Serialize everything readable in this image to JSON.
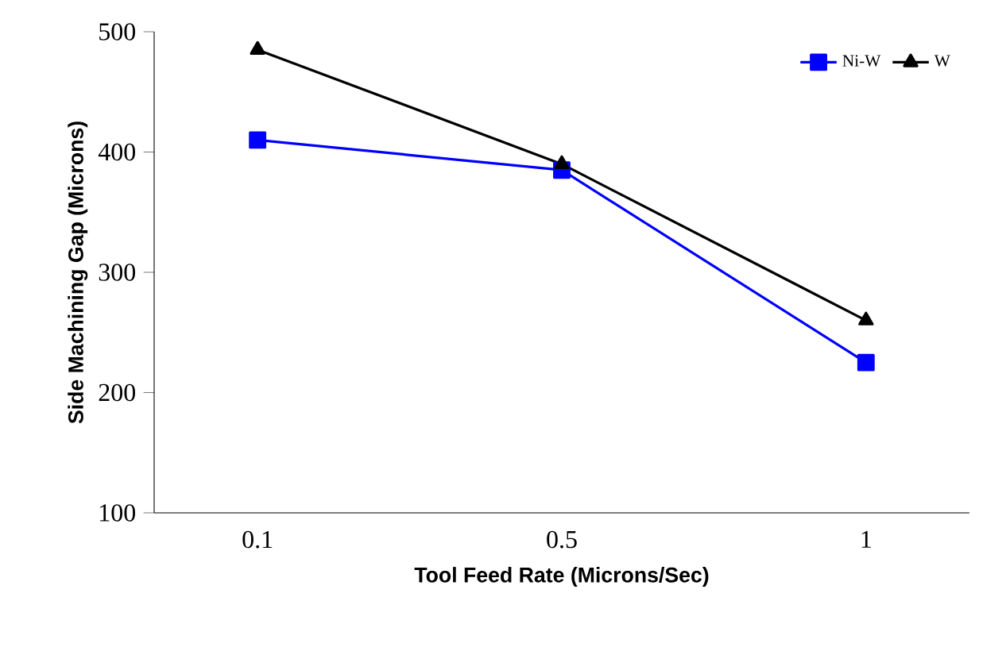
{
  "chart_data": {
    "type": "line",
    "xlabel": "Tool Feed Rate (Microns/Sec)",
    "ylabel": "Side Machining Gap (Microns)",
    "categories": [
      "0.1",
      "0.5",
      "1"
    ],
    "series": [
      {
        "name": "Ni-W",
        "color": "#0000ff",
        "marker": "square",
        "values": [
          410,
          385,
          225
        ]
      },
      {
        "name": "W",
        "color": "#000000",
        "marker": "triangle",
        "values": [
          485,
          390,
          260
        ]
      }
    ],
    "ylim": [
      100,
      500
    ],
    "yticks": [
      100,
      200,
      300,
      400,
      500
    ],
    "legend": "top right",
    "grid": false
  }
}
